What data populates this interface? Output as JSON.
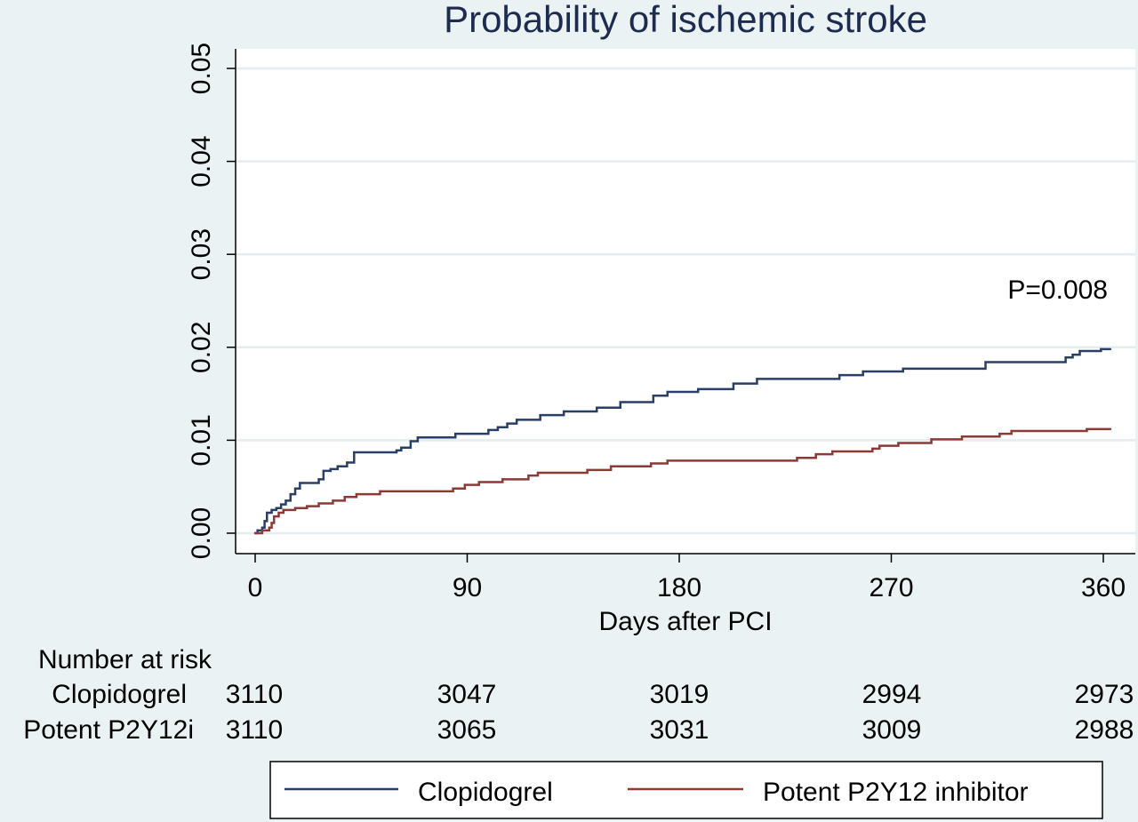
{
  "chart_data": {
    "type": "line",
    "step": true,
    "title": "Probability of ischemic stroke",
    "xlabel": "Days after PCI",
    "ylabel": "",
    "xlim": [
      0,
      360
    ],
    "ylim": [
      0,
      0.05
    ],
    "xticks": [
      0,
      90,
      180,
      270,
      360
    ],
    "yticks": [
      "0.00",
      "0.01",
      "0.02",
      "0.03",
      "0.04",
      "0.05"
    ],
    "grid": "horizontal",
    "annotation": "P=0.008",
    "series": [
      {
        "name": "Clopidogrel",
        "color": "#2a3f66",
        "points": [
          [
            0,
            0
          ],
          [
            1,
            0.0003
          ],
          [
            3,
            0.0006
          ],
          [
            4,
            0.0013
          ],
          [
            5,
            0.0022
          ],
          [
            7,
            0.0025
          ],
          [
            9,
            0.0027
          ],
          [
            11,
            0.0031
          ],
          [
            13,
            0.0035
          ],
          [
            15,
            0.0042
          ],
          [
            17,
            0.0048
          ],
          [
            19,
            0.0054
          ],
          [
            27,
            0.0058
          ],
          [
            29,
            0.0067
          ],
          [
            32,
            0.0069
          ],
          [
            35,
            0.0072
          ],
          [
            39,
            0.0076
          ],
          [
            42,
            0.0087
          ],
          [
            60,
            0.0089
          ],
          [
            62,
            0.0092
          ],
          [
            66,
            0.0099
          ],
          [
            69,
            0.0103
          ],
          [
            85,
            0.0107
          ],
          [
            99,
            0.0111
          ],
          [
            103,
            0.0114
          ],
          [
            107,
            0.0118
          ],
          [
            111,
            0.0122
          ],
          [
            121,
            0.0127
          ],
          [
            131,
            0.0131
          ],
          [
            145,
            0.0135
          ],
          [
            155,
            0.0141
          ],
          [
            169,
            0.0148
          ],
          [
            175,
            0.0152
          ],
          [
            188,
            0.0155
          ],
          [
            203,
            0.0161
          ],
          [
            213,
            0.0166
          ],
          [
            248,
            0.017
          ],
          [
            258,
            0.0174
          ],
          [
            275,
            0.0177
          ],
          [
            310,
            0.0184
          ],
          [
            344,
            0.0189
          ],
          [
            347,
            0.0192
          ],
          [
            350,
            0.0196
          ],
          [
            359,
            0.0198
          ],
          [
            363,
            0.0198
          ]
        ]
      },
      {
        "name": "Potent P2Y12 inhibitor",
        "color": "#8b3a36",
        "points": [
          [
            0,
            0
          ],
          [
            3,
            0.0003
          ],
          [
            6,
            0.0006
          ],
          [
            7,
            0.0011
          ],
          [
            8,
            0.0018
          ],
          [
            10,
            0.0022
          ],
          [
            12,
            0.0025
          ],
          [
            17,
            0.0027
          ],
          [
            22,
            0.0029
          ],
          [
            27,
            0.0032
          ],
          [
            33,
            0.0035
          ],
          [
            38,
            0.0039
          ],
          [
            43,
            0.0042
          ],
          [
            53,
            0.0045
          ],
          [
            84,
            0.0048
          ],
          [
            89,
            0.0052
          ],
          [
            95,
            0.0055
          ],
          [
            105,
            0.0058
          ],
          [
            116,
            0.0062
          ],
          [
            120,
            0.0065
          ],
          [
            141,
            0.0068
          ],
          [
            151,
            0.0072
          ],
          [
            168,
            0.0075
          ],
          [
            175,
            0.0078
          ],
          [
            230,
            0.0081
          ],
          [
            238,
            0.0085
          ],
          [
            245,
            0.0088
          ],
          [
            262,
            0.0091
          ],
          [
            265,
            0.0094
          ],
          [
            273,
            0.0097
          ],
          [
            287,
            0.0101
          ],
          [
            300,
            0.0104
          ],
          [
            316,
            0.0107
          ],
          [
            321,
            0.011
          ],
          [
            353,
            0.0112
          ],
          [
            363,
            0.0112
          ]
        ]
      }
    ]
  },
  "risk_table": {
    "heading": "Number at risk",
    "rows": [
      {
        "label": "Clopidogrel",
        "values": [
          "3110",
          "3047",
          "3019",
          "2994",
          "2973"
        ]
      },
      {
        "label": "Potent P2Y12i",
        "values": [
          "3110",
          "3065",
          "3031",
          "3009",
          "2988"
        ]
      }
    ]
  },
  "legend": {
    "items": [
      {
        "label": "Clopidogrel",
        "color": "#2a3f66"
      },
      {
        "label": "Potent P2Y12 inhibitor",
        "color": "#8b3a36"
      }
    ]
  }
}
